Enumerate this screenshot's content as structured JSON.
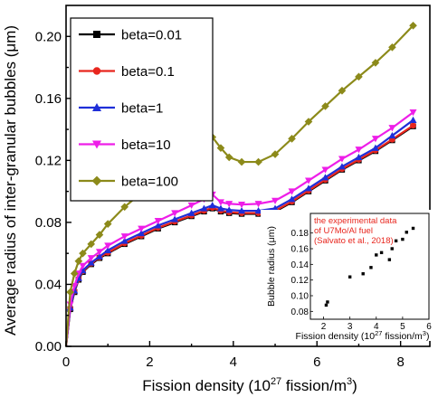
{
  "chart_data": {
    "type": "line",
    "xlabel": "Fission density (10",
    "xlabel_sup": "27",
    "xlabel_tail": " fission/m",
    "xlabel_sup2": "3",
    "xlabel_end": ")",
    "ylabel": "Average radius of inter-granular bubbles (μm)",
    "xlim": [
      0,
      8.7
    ],
    "ylim": [
      0,
      0.22
    ],
    "xticks": [
      0,
      2,
      4,
      6,
      8
    ],
    "xtick_labels": [
      "0",
      "2",
      "4",
      "6",
      "8"
    ],
    "yticks": [
      0.0,
      0.04,
      0.08,
      0.12,
      0.16,
      0.2
    ],
    "ytick_labels": [
      "0.00",
      "0.04",
      "0.08",
      "0.12",
      "0.16",
      "0.20"
    ],
    "legend_position": "top-left",
    "series": [
      {
        "name": "beta=0.01",
        "color": "#000000",
        "marker": "square",
        "points": [
          [
            0,
            0
          ],
          [
            0.1,
            0.024
          ],
          [
            0.2,
            0.035
          ],
          [
            0.3,
            0.043
          ],
          [
            0.4,
            0.048
          ],
          [
            0.6,
            0.053
          ],
          [
            0.8,
            0.057
          ],
          [
            1.0,
            0.06
          ],
          [
            1.4,
            0.066
          ],
          [
            1.8,
            0.071
          ],
          [
            2.2,
            0.076
          ],
          [
            2.6,
            0.08
          ],
          [
            3.0,
            0.084
          ],
          [
            3.3,
            0.087
          ],
          [
            3.5,
            0.089
          ],
          [
            3.7,
            0.087
          ],
          [
            3.9,
            0.086
          ],
          [
            4.2,
            0.0855
          ],
          [
            4.6,
            0.0855
          ],
          [
            5.0,
            0.087
          ],
          [
            5.4,
            0.093
          ],
          [
            5.8,
            0.1
          ],
          [
            6.2,
            0.107
          ],
          [
            6.6,
            0.114
          ],
          [
            7.0,
            0.12
          ],
          [
            7.4,
            0.126
          ],
          [
            7.8,
            0.133
          ],
          [
            8.3,
            0.142
          ]
        ]
      },
      {
        "name": "beta=0.1",
        "color": "#e8261e",
        "marker": "circle",
        "points": [
          [
            0,
            0
          ],
          [
            0.1,
            0.0245
          ],
          [
            0.2,
            0.0355
          ],
          [
            0.3,
            0.0435
          ],
          [
            0.4,
            0.0485
          ],
          [
            0.6,
            0.0535
          ],
          [
            0.8,
            0.0575
          ],
          [
            1.0,
            0.0605
          ],
          [
            1.4,
            0.0665
          ],
          [
            1.8,
            0.0715
          ],
          [
            2.2,
            0.0765
          ],
          [
            2.6,
            0.0805
          ],
          [
            3.0,
            0.0845
          ],
          [
            3.3,
            0.0875
          ],
          [
            3.5,
            0.0895
          ],
          [
            3.7,
            0.0875
          ],
          [
            3.9,
            0.0865
          ],
          [
            4.2,
            0.086
          ],
          [
            4.6,
            0.086
          ],
          [
            5.0,
            0.0875
          ],
          [
            5.4,
            0.0935
          ],
          [
            5.8,
            0.1005
          ],
          [
            6.2,
            0.1075
          ],
          [
            6.6,
            0.1145
          ],
          [
            7.0,
            0.1205
          ],
          [
            7.4,
            0.1265
          ],
          [
            7.8,
            0.1335
          ],
          [
            8.3,
            0.1425
          ]
        ]
      },
      {
        "name": "beta=1",
        "color": "#1f2fd8",
        "marker": "triangle-up",
        "points": [
          [
            0,
            0
          ],
          [
            0.1,
            0.025
          ],
          [
            0.2,
            0.036
          ],
          [
            0.3,
            0.044
          ],
          [
            0.4,
            0.049
          ],
          [
            0.6,
            0.054
          ],
          [
            0.8,
            0.058
          ],
          [
            1.0,
            0.062
          ],
          [
            1.4,
            0.068
          ],
          [
            1.8,
            0.073
          ],
          [
            2.2,
            0.078
          ],
          [
            2.6,
            0.082
          ],
          [
            3.0,
            0.086
          ],
          [
            3.3,
            0.089
          ],
          [
            3.5,
            0.091
          ],
          [
            3.7,
            0.089
          ],
          [
            3.9,
            0.088
          ],
          [
            4.2,
            0.0875
          ],
          [
            4.6,
            0.0875
          ],
          [
            5.0,
            0.089
          ],
          [
            5.4,
            0.095
          ],
          [
            5.8,
            0.102
          ],
          [
            6.2,
            0.109
          ],
          [
            6.6,
            0.116
          ],
          [
            7.0,
            0.122
          ],
          [
            7.4,
            0.128
          ],
          [
            7.8,
            0.136
          ],
          [
            8.3,
            0.146
          ]
        ]
      },
      {
        "name": "beta=10",
        "color": "#ee1ee8",
        "marker": "triangle-down",
        "points": [
          [
            0,
            0
          ],
          [
            0.1,
            0.027
          ],
          [
            0.2,
            0.039
          ],
          [
            0.3,
            0.047
          ],
          [
            0.4,
            0.052
          ],
          [
            0.6,
            0.057
          ],
          [
            0.8,
            0.061
          ],
          [
            1.0,
            0.065
          ],
          [
            1.4,
            0.071
          ],
          [
            1.8,
            0.076
          ],
          [
            2.2,
            0.081
          ],
          [
            2.6,
            0.086
          ],
          [
            3.0,
            0.091
          ],
          [
            3.3,
            0.095
          ],
          [
            3.5,
            0.098
          ],
          [
            3.7,
            0.093
          ],
          [
            3.9,
            0.092
          ],
          [
            4.2,
            0.0915
          ],
          [
            4.6,
            0.092
          ],
          [
            5.0,
            0.094
          ],
          [
            5.4,
            0.1
          ],
          [
            5.8,
            0.107
          ],
          [
            6.2,
            0.114
          ],
          [
            6.6,
            0.121
          ],
          [
            7.0,
            0.127
          ],
          [
            7.4,
            0.134
          ],
          [
            7.8,
            0.141
          ],
          [
            8.3,
            0.151
          ]
        ]
      },
      {
        "name": "beta=100",
        "color": "#8c8a1a",
        "marker": "diamond",
        "points": [
          [
            0,
            0
          ],
          [
            0.1,
            0.035
          ],
          [
            0.2,
            0.047
          ],
          [
            0.3,
            0.055
          ],
          [
            0.4,
            0.06
          ],
          [
            0.6,
            0.066
          ],
          [
            0.8,
            0.072
          ],
          [
            1.0,
            0.079
          ],
          [
            1.4,
            0.09
          ],
          [
            1.8,
            0.099
          ],
          [
            2.2,
            0.108
          ],
          [
            2.6,
            0.116
          ],
          [
            3.0,
            0.124
          ],
          [
            3.3,
            0.13
          ],
          [
            3.5,
            0.135
          ],
          [
            3.7,
            0.128
          ],
          [
            3.9,
            0.122
          ],
          [
            4.2,
            0.119
          ],
          [
            4.6,
            0.119
          ],
          [
            5.0,
            0.124
          ],
          [
            5.4,
            0.134
          ],
          [
            5.8,
            0.145
          ],
          [
            6.2,
            0.155
          ],
          [
            6.6,
            0.165
          ],
          [
            7.0,
            0.174
          ],
          [
            7.4,
            0.183
          ],
          [
            7.8,
            0.193
          ],
          [
            8.3,
            0.207
          ]
        ]
      }
    ],
    "inset": {
      "xlabel": "Fission density (10",
      "xlabel_sup": "27",
      "xlabel_tail": " fission/m",
      "xlabel_sup2": "3",
      "xlabel_end": ")",
      "ylabel": "Bubble radius (μm)",
      "xlim": [
        1.5,
        6.0
      ],
      "ylim": [
        0.07,
        0.205
      ],
      "xticks": [
        2,
        3,
        4,
        5,
        6
      ],
      "xtick_labels": [
        "2",
        "3",
        "4",
        "5",
        "6"
      ],
      "yticks": [
        0.08,
        0.1,
        0.12,
        0.14,
        0.16,
        0.18
      ],
      "ytick_labels": [
        "0.08",
        "0.10",
        "0.12",
        "0.14",
        "0.16",
        "0.18"
      ],
      "note_lines": [
        "the experimental data",
        "of U7Mo/Al fuel",
        "(Salvato et al., 2018)"
      ],
      "points": [
        [
          2.1,
          0.088
        ],
        [
          2.15,
          0.092
        ],
        [
          3.0,
          0.124
        ],
        [
          3.5,
          0.128
        ],
        [
          3.8,
          0.136
        ],
        [
          4.0,
          0.152
        ],
        [
          4.2,
          0.155
        ],
        [
          4.5,
          0.146
        ],
        [
          4.6,
          0.16
        ],
        [
          4.75,
          0.17
        ],
        [
          5.0,
          0.172
        ],
        [
          5.15,
          0.181
        ],
        [
          5.4,
          0.186
        ]
      ]
    }
  }
}
